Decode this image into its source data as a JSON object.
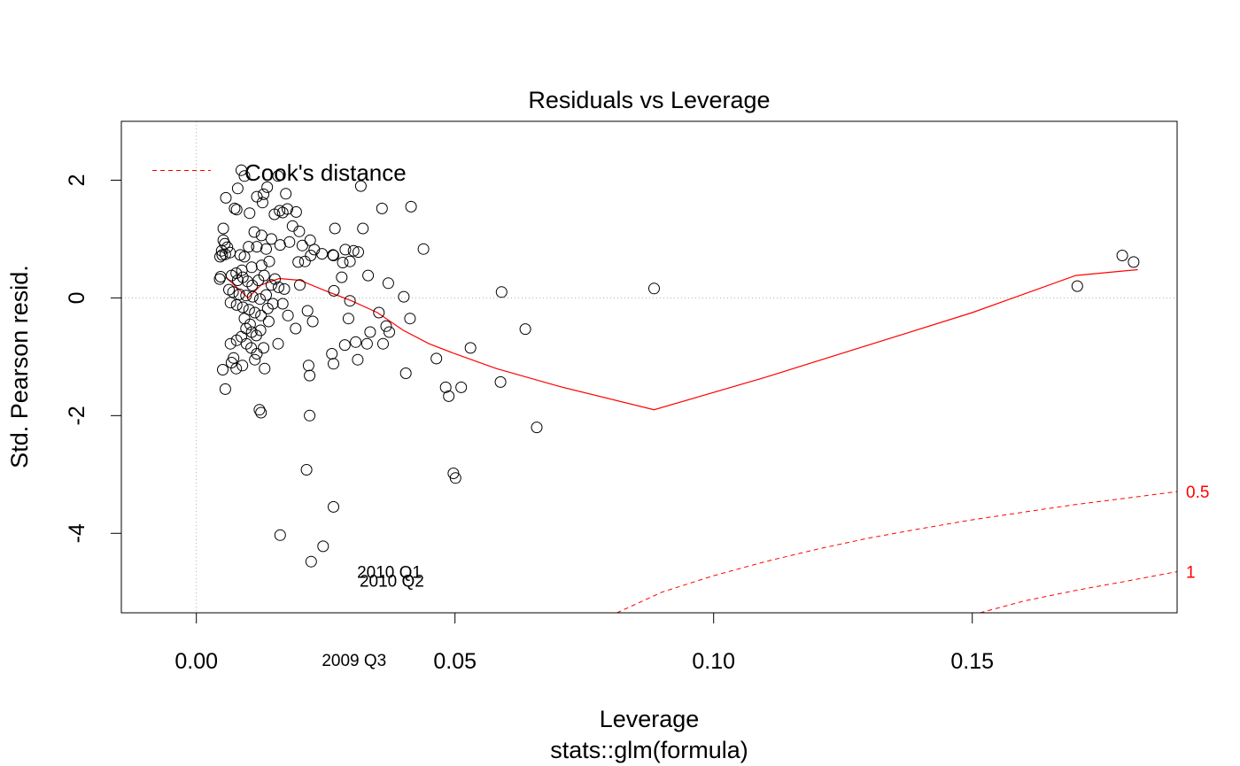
{
  "chart_data": {
    "type": "scatter",
    "title": "Residuals vs Leverage",
    "xlabel": "Leverage",
    "ylabel": "Std. Pearson resid.",
    "subtitle": "stats::glm(formula)",
    "xlim": [
      -0.0145,
      0.1896
    ],
    "ylim": [
      -5.35,
      3.0
    ],
    "x_ticks": [
      0.0,
      0.05,
      0.1,
      0.15
    ],
    "x_tick_labels": [
      "0.00",
      "0.05",
      "0.10",
      "0.15"
    ],
    "y_ticks": [
      2,
      0,
      -2,
      -4
    ],
    "y_tick_labels": [
      "2",
      "0",
      "-2",
      "-4"
    ],
    "grid": false,
    "reference_lines": {
      "horizontal_y": 0,
      "vertical_x": 0
    },
    "legend": {
      "label": "Cook's distance",
      "placement": "top-left"
    },
    "colors": {
      "points": "#000000",
      "smoother": "#ff0000",
      "cooks_contour": "#ff0000",
      "reference": "#b0b0b0"
    },
    "point_labels": [
      {
        "text": "2010 Q1",
        "x": 0.0373,
        "y": -4.65
      },
      {
        "text": "2010 Q2",
        "x": 0.0378,
        "y": -4.8
      },
      {
        "text": "2009 Q3",
        "x": 0.0305,
        "y": -6.15
      }
    ],
    "cooks_contours": [
      {
        "label": "0.5",
        "points": [
          [
            0.0813,
            -5.35
          ],
          [
            0.09,
            -5.0
          ],
          [
            0.1,
            -4.72
          ],
          [
            0.11,
            -4.48
          ],
          [
            0.12,
            -4.27
          ],
          [
            0.13,
            -4.08
          ],
          [
            0.14,
            -3.92
          ],
          [
            0.15,
            -3.77
          ],
          [
            0.16,
            -3.64
          ],
          [
            0.17,
            -3.51
          ],
          [
            0.18,
            -3.4
          ],
          [
            0.1896,
            -3.29
          ]
        ]
      },
      {
        "label": "1",
        "points": [
          [
            0.1515,
            -5.35
          ],
          [
            0.16,
            -5.15
          ],
          [
            0.17,
            -4.97
          ],
          [
            0.18,
            -4.81
          ],
          [
            0.1896,
            -4.65
          ]
        ]
      }
    ],
    "smoother": [
      [
        0.006,
        0.33
      ],
      [
        0.01,
        0.0
      ],
      [
        0.0125,
        0.22
      ],
      [
        0.016,
        0.33
      ],
      [
        0.02,
        0.3
      ],
      [
        0.025,
        0.12
      ],
      [
        0.03,
        -0.05
      ],
      [
        0.035,
        -0.25
      ],
      [
        0.04,
        -0.55
      ],
      [
        0.045,
        -0.78
      ],
      [
        0.05,
        -0.95
      ],
      [
        0.058,
        -1.2
      ],
      [
        0.07,
        -1.5
      ],
      [
        0.0885,
        -1.9
      ],
      [
        0.11,
        -1.35
      ],
      [
        0.15,
        -0.25
      ],
      [
        0.17,
        0.38
      ],
      [
        0.182,
        0.48
      ]
    ],
    "points": [
      [
        0.0087,
        2.17
      ],
      [
        0.0093,
        2.07
      ],
      [
        0.0137,
        1.88
      ],
      [
        0.008,
        1.86
      ],
      [
        0.013,
        1.76
      ],
      [
        0.0117,
        1.72
      ],
      [
        0.0057,
        1.7
      ],
      [
        0.0128,
        1.62
      ],
      [
        0.0074,
        1.52
      ],
      [
        0.0078,
        1.5
      ],
      [
        0.0103,
        1.44
      ],
      [
        0.0158,
        2.07
      ],
      [
        0.0173,
        1.77
      ],
      [
        0.0161,
        1.48
      ],
      [
        0.0167,
        1.45
      ],
      [
        0.0176,
        1.51
      ],
      [
        0.0193,
        1.46
      ],
      [
        0.0151,
        1.42
      ],
      [
        0.0186,
        1.22
      ],
      [
        0.0199,
        1.13
      ],
      [
        0.0112,
        1.12
      ],
      [
        0.0126,
        1.06
      ],
      [
        0.0145,
        1.0
      ],
      [
        0.018,
        0.95
      ],
      [
        0.022,
        0.98
      ],
      [
        0.0052,
        1.18
      ],
      [
        0.0052,
        0.98
      ],
      [
        0.0055,
        0.92
      ],
      [
        0.006,
        0.86
      ],
      [
        0.0049,
        0.8
      ],
      [
        0.0065,
        0.77
      ],
      [
        0.005,
        0.73
      ],
      [
        0.0046,
        0.7
      ],
      [
        0.0056,
        0.74
      ],
      [
        0.0085,
        0.73
      ],
      [
        0.0093,
        0.7
      ],
      [
        0.0101,
        0.87
      ],
      [
        0.0117,
        0.87
      ],
      [
        0.0135,
        0.83
      ],
      [
        0.0162,
        0.9
      ],
      [
        0.0205,
        0.89
      ],
      [
        0.0228,
        0.82
      ],
      [
        0.0243,
        0.75
      ],
      [
        0.0221,
        0.72
      ],
      [
        0.0197,
        0.61
      ],
      [
        0.021,
        0.62
      ],
      [
        0.0141,
        0.62
      ],
      [
        0.0126,
        0.55
      ],
      [
        0.0107,
        0.52
      ],
      [
        0.0088,
        0.47
      ],
      [
        0.0077,
        0.42
      ],
      [
        0.0068,
        0.38
      ],
      [
        0.0047,
        0.36
      ],
      [
        0.0045,
        0.32
      ],
      [
        0.008,
        0.3
      ],
      [
        0.009,
        0.35
      ],
      [
        0.0099,
        0.28
      ],
      [
        0.0108,
        0.21
      ],
      [
        0.012,
        0.3
      ],
      [
        0.0131,
        0.38
      ],
      [
        0.0145,
        0.22
      ],
      [
        0.0159,
        0.18
      ],
      [
        0.0152,
        0.32
      ],
      [
        0.017,
        0.15
      ],
      [
        0.02,
        0.22
      ],
      [
        0.0063,
        0.14
      ],
      [
        0.0071,
        0.1
      ],
      [
        0.0083,
        0.06
      ],
      [
        0.0096,
        0.04
      ],
      [
        0.0109,
        0.02
      ],
      [
        0.0123,
        -0.02
      ],
      [
        0.0135,
        0.05
      ],
      [
        0.0066,
        -0.08
      ],
      [
        0.0078,
        -0.12
      ],
      [
        0.009,
        -0.16
      ],
      [
        0.0102,
        -0.2
      ],
      [
        0.0113,
        -0.25
      ],
      [
        0.0125,
        -0.3
      ],
      [
        0.0138,
        -0.18
      ],
      [
        0.0093,
        -0.35
      ],
      [
        0.0104,
        -0.45
      ],
      [
        0.0096,
        -0.52
      ],
      [
        0.0107,
        -0.58
      ],
      [
        0.0116,
        -0.64
      ],
      [
        0.0087,
        -0.66
      ],
      [
        0.0078,
        -0.72
      ],
      [
        0.0097,
        -0.78
      ],
      [
        0.0066,
        -0.78
      ],
      [
        0.0106,
        -0.85
      ],
      [
        0.0117,
        -0.95
      ],
      [
        0.013,
        -0.85
      ],
      [
        0.0124,
        -0.55
      ],
      [
        0.014,
        -0.4
      ],
      [
        0.0148,
        -0.1
      ],
      [
        0.0167,
        -0.1
      ],
      [
        0.0177,
        -0.3
      ],
      [
        0.0158,
        -0.78
      ],
      [
        0.0192,
        -0.52
      ],
      [
        0.0215,
        -0.22
      ],
      [
        0.0225,
        -0.4
      ],
      [
        0.0072,
        -1.02
      ],
      [
        0.0068,
        -1.1
      ],
      [
        0.0077,
        -1.2
      ],
      [
        0.0089,
        -1.15
      ],
      [
        0.0051,
        -1.22
      ],
      [
        0.0056,
        -1.55
      ],
      [
        0.0113,
        -1.05
      ],
      [
        0.0132,
        -1.2
      ],
      [
        0.0122,
        -1.9
      ],
      [
        0.0125,
        -1.95
      ],
      [
        0.0217,
        -1.15
      ],
      [
        0.0219,
        -1.32
      ],
      [
        0.0219,
        -2.0
      ],
      [
        0.0213,
        -2.92
      ],
      [
        0.0162,
        -4.03
      ],
      [
        0.0222,
        -4.48
      ],
      [
        0.0245,
        -4.22
      ],
      [
        0.0265,
        -3.55
      ],
      [
        0.0268,
        1.18
      ],
      [
        0.0265,
        0.72
      ],
      [
        0.0264,
        0.73
      ],
      [
        0.0283,
        0.6
      ],
      [
        0.0288,
        0.82
      ],
      [
        0.0304,
        0.8
      ],
      [
        0.0297,
        0.62
      ],
      [
        0.0313,
        0.78
      ],
      [
        0.0318,
        1.9
      ],
      [
        0.0322,
        1.18
      ],
      [
        0.0281,
        0.35
      ],
      [
        0.0266,
        0.12
      ],
      [
        0.0297,
        -0.05
      ],
      [
        0.0294,
        -0.35
      ],
      [
        0.0332,
        0.38
      ],
      [
        0.0262,
        -0.95
      ],
      [
        0.0265,
        -1.12
      ],
      [
        0.0287,
        -0.8
      ],
      [
        0.0308,
        -0.75
      ],
      [
        0.0312,
        -1.05
      ],
      [
        0.033,
        -0.78
      ],
      [
        0.0336,
        -0.58
      ],
      [
        0.0353,
        -0.25
      ],
      [
        0.0359,
        1.52
      ],
      [
        0.0367,
        -0.48
      ],
      [
        0.0371,
        0.25
      ],
      [
        0.0361,
        -0.78
      ],
      [
        0.0373,
        -0.58
      ],
      [
        0.0401,
        0.02
      ],
      [
        0.0405,
        -1.28
      ],
      [
        0.0413,
        -0.35
      ],
      [
        0.0415,
        1.55
      ],
      [
        0.0439,
        0.83
      ],
      [
        0.0464,
        -1.03
      ],
      [
        0.0482,
        -1.52
      ],
      [
        0.0488,
        -1.67
      ],
      [
        0.0497,
        -2.98
      ],
      [
        0.0501,
        -3.06
      ],
      [
        0.0512,
        -1.52
      ],
      [
        0.053,
        -0.85
      ],
      [
        0.059,
        0.1
      ],
      [
        0.0588,
        -1.43
      ],
      [
        0.0636,
        -0.53
      ],
      [
        0.0658,
        -2.2
      ],
      [
        0.0885,
        0.16
      ],
      [
        0.1703,
        0.2
      ],
      [
        0.179,
        0.72
      ],
      [
        0.1812,
        0.61
      ]
    ]
  }
}
